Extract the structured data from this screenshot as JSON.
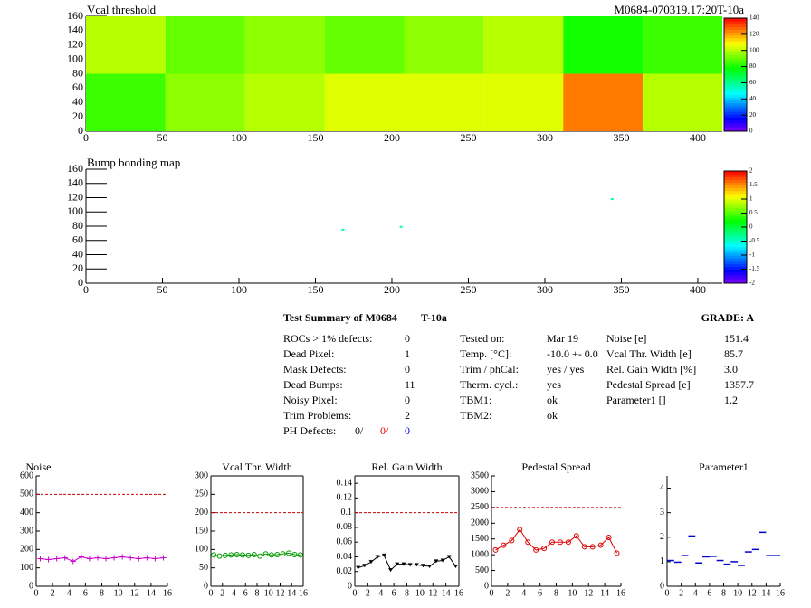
{
  "chart_data": [
    {
      "type": "heatmap",
      "title": "Vcal threshold",
      "subtitle": "M0684-070319.17:20T-10a",
      "x_edges": [
        0,
        52,
        104,
        156,
        208,
        260,
        312,
        364,
        416
      ],
      "y_edges": [
        0,
        80,
        160
      ],
      "values": [
        [
          85,
          95,
          100,
          105,
          105,
          105,
          125,
          100
        ],
        [
          100,
          90,
          95,
          90,
          95,
          100,
          80,
          85
        ]
      ],
      "xlim": [
        0,
        416
      ],
      "ylim": [
        0,
        160
      ],
      "xticks": [
        0,
        50,
        100,
        150,
        200,
        250,
        300,
        350,
        400
      ],
      "yticks": [
        0,
        20,
        40,
        60,
        80,
        100,
        120,
        140,
        160
      ],
      "zlim": [
        0,
        140
      ],
      "zticks": [
        0,
        20,
        40,
        60,
        80,
        100,
        120,
        140
      ]
    },
    {
      "type": "scatter",
      "title": "Bump bonding map",
      "x": [
        168,
        206,
        344
      ],
      "y": [
        75,
        79,
        118
      ],
      "values": [
        0,
        0,
        0
      ],
      "xlim": [
        0,
        416
      ],
      "ylim": [
        0,
        160
      ],
      "xticks": [
        0,
        50,
        100,
        150,
        200,
        250,
        300,
        350,
        400
      ],
      "yticks": [
        0,
        20,
        40,
        60,
        80,
        100,
        120,
        140,
        160
      ],
      "zlim": [
        -2,
        2
      ],
      "zticks": [
        -2,
        -1.5,
        -1,
        -0.5,
        0,
        0.5,
        1,
        1.5,
        2
      ]
    },
    {
      "type": "line",
      "title": "Noise",
      "color": "#cc00cc",
      "marker": "plus",
      "reference": 500,
      "x": [
        0.5,
        1.5,
        2.5,
        3.5,
        4.5,
        5.5,
        6.5,
        7.5,
        8.5,
        9.5,
        10.5,
        11.5,
        12.5,
        13.5,
        14.5,
        15.5
      ],
      "values": [
        150,
        145,
        150,
        155,
        135,
        160,
        150,
        155,
        150,
        155,
        160,
        155,
        150,
        155,
        150,
        155
      ],
      "xlim": [
        0,
        16
      ],
      "xticks": [
        0,
        2,
        4,
        6,
        8,
        10,
        12,
        14,
        16
      ],
      "ylim": [
        0,
        600
      ],
      "yticks": [
        0,
        100,
        200,
        300,
        400,
        500,
        600
      ]
    },
    {
      "type": "line",
      "title": "Vcal Thr. Width",
      "color": "#009900",
      "marker": "circle",
      "reference": 200,
      "x": [
        0.5,
        1.5,
        2.5,
        3.5,
        4.5,
        5.5,
        6.5,
        7.5,
        8.5,
        9.5,
        10.5,
        11.5,
        12.5,
        13.5,
        14.5,
        15.5
      ],
      "values": [
        85,
        82,
        84,
        85,
        86,
        85,
        84,
        86,
        82,
        88,
        85,
        86,
        88,
        90,
        86,
        85
      ],
      "xlim": [
        0,
        16
      ],
      "xticks": [
        0,
        2,
        4,
        6,
        8,
        10,
        12,
        14,
        16
      ],
      "ylim": [
        0,
        300
      ],
      "yticks": [
        0,
        50,
        100,
        150,
        200,
        250,
        300
      ]
    },
    {
      "type": "line",
      "title": "Rel. Gain Width",
      "color": "#000000",
      "marker": "triangle",
      "reference": 0.1,
      "x": [
        0.5,
        1.5,
        2.5,
        3.5,
        4.5,
        5.5,
        6.5,
        7.5,
        8.5,
        9.5,
        10.5,
        11.5,
        12.5,
        13.5,
        14.5,
        15.5
      ],
      "values": [
        0.025,
        0.028,
        0.033,
        0.04,
        0.042,
        0.022,
        0.03,
        0.03,
        0.029,
        0.029,
        0.028,
        0.027,
        0.034,
        0.035,
        0.04,
        0.027
      ],
      "xlim": [
        0,
        16
      ],
      "xticks": [
        0,
        2,
        4,
        6,
        8,
        10,
        12,
        14,
        16
      ],
      "ylim": [
        0,
        0.15
      ],
      "yticks": [
        0,
        0.02,
        0.04,
        0.06,
        0.08,
        0.1,
        0.12,
        0.14
      ]
    },
    {
      "type": "line",
      "title": "Pedestal Spread",
      "color": "#dd0000",
      "marker": "circle",
      "reference": 2500,
      "x": [
        0.5,
        1.5,
        2.5,
        3.5,
        4.5,
        5.5,
        6.5,
        7.5,
        8.5,
        9.5,
        10.5,
        11.5,
        12.5,
        13.5,
        14.5,
        15.5
      ],
      "values": [
        1150,
        1300,
        1450,
        1800,
        1400,
        1150,
        1200,
        1400,
        1400,
        1400,
        1600,
        1250,
        1250,
        1300,
        1550,
        1050
      ],
      "xlim": [
        0,
        16
      ],
      "xticks": [
        0,
        2,
        4,
        6,
        8,
        10,
        12,
        14,
        16
      ],
      "ylim": [
        0,
        3500
      ],
      "yticks": [
        0,
        500,
        1000,
        1500,
        2000,
        2500,
        3000,
        3500
      ]
    },
    {
      "type": "errorbar",
      "title": "Parameter1",
      "color": "#0000cc",
      "x": [
        0.5,
        1.5,
        2.5,
        3.5,
        4.5,
        5.5,
        6.5,
        7.5,
        8.5,
        9.5,
        10.5,
        11.5,
        12.5,
        13.5,
        14.5,
        15.5
      ],
      "values": [
        1.05,
        0.98,
        1.25,
        2.05,
        0.95,
        1.2,
        1.22,
        1.05,
        0.9,
        1.0,
        0.85,
        1.4,
        1.5,
        2.2,
        1.25,
        1.25
      ],
      "xlim": [
        0,
        16
      ],
      "xticks": [
        0,
        2,
        4,
        6,
        8,
        10,
        12,
        14,
        16
      ],
      "ylim": [
        0,
        4.5
      ],
      "yticks": [
        0,
        1,
        2,
        3,
        4
      ]
    }
  ],
  "summary": {
    "title": "Test Summary of M0684",
    "tag": "T-10a",
    "grade": "GRADE:  A",
    "left": [
      {
        "label": "ROCs > 1% defects:",
        "value": "0"
      },
      {
        "label": "Dead Pixel:",
        "value": "1"
      },
      {
        "label": "Mask Defects:",
        "value": "0"
      },
      {
        "label": "Dead Bumps:",
        "value": "11"
      },
      {
        "label": "Noisy Pixel:",
        "value": "0"
      },
      {
        "label": "Trim Problems:",
        "value": "2"
      }
    ],
    "ph": {
      "label": "PH Defects:",
      "values": [
        "0/",
        "0/",
        "0"
      ],
      "colors": [
        "#000000",
        "#ee0000",
        "#0000cc"
      ]
    },
    "middle": [
      {
        "label": "Tested on:",
        "value": "Mar 19"
      },
      {
        "label": "Temp. [°C]:",
        "value": "-10.0 +- 0.0"
      },
      {
        "label": "Trim / phCal:",
        "value": "yes / yes"
      },
      {
        "label": "Therm. cycl.:",
        "value": "yes"
      },
      {
        "label": "TBM1:",
        "value": "ok"
      },
      {
        "label": "TBM2:",
        "value": "ok"
      }
    ],
    "right": [
      {
        "label": "Noise [e]",
        "value": "151.4"
      },
      {
        "label": "Vcal Thr. Width [e]",
        "value": "85.7"
      },
      {
        "label": "Rel. Gain Width [%]",
        "value": "3.0"
      },
      {
        "label": "Pedestal Spread [e]",
        "value": "1357.7"
      },
      {
        "label": "Parameter1 []",
        "value": "1.2"
      }
    ]
  }
}
